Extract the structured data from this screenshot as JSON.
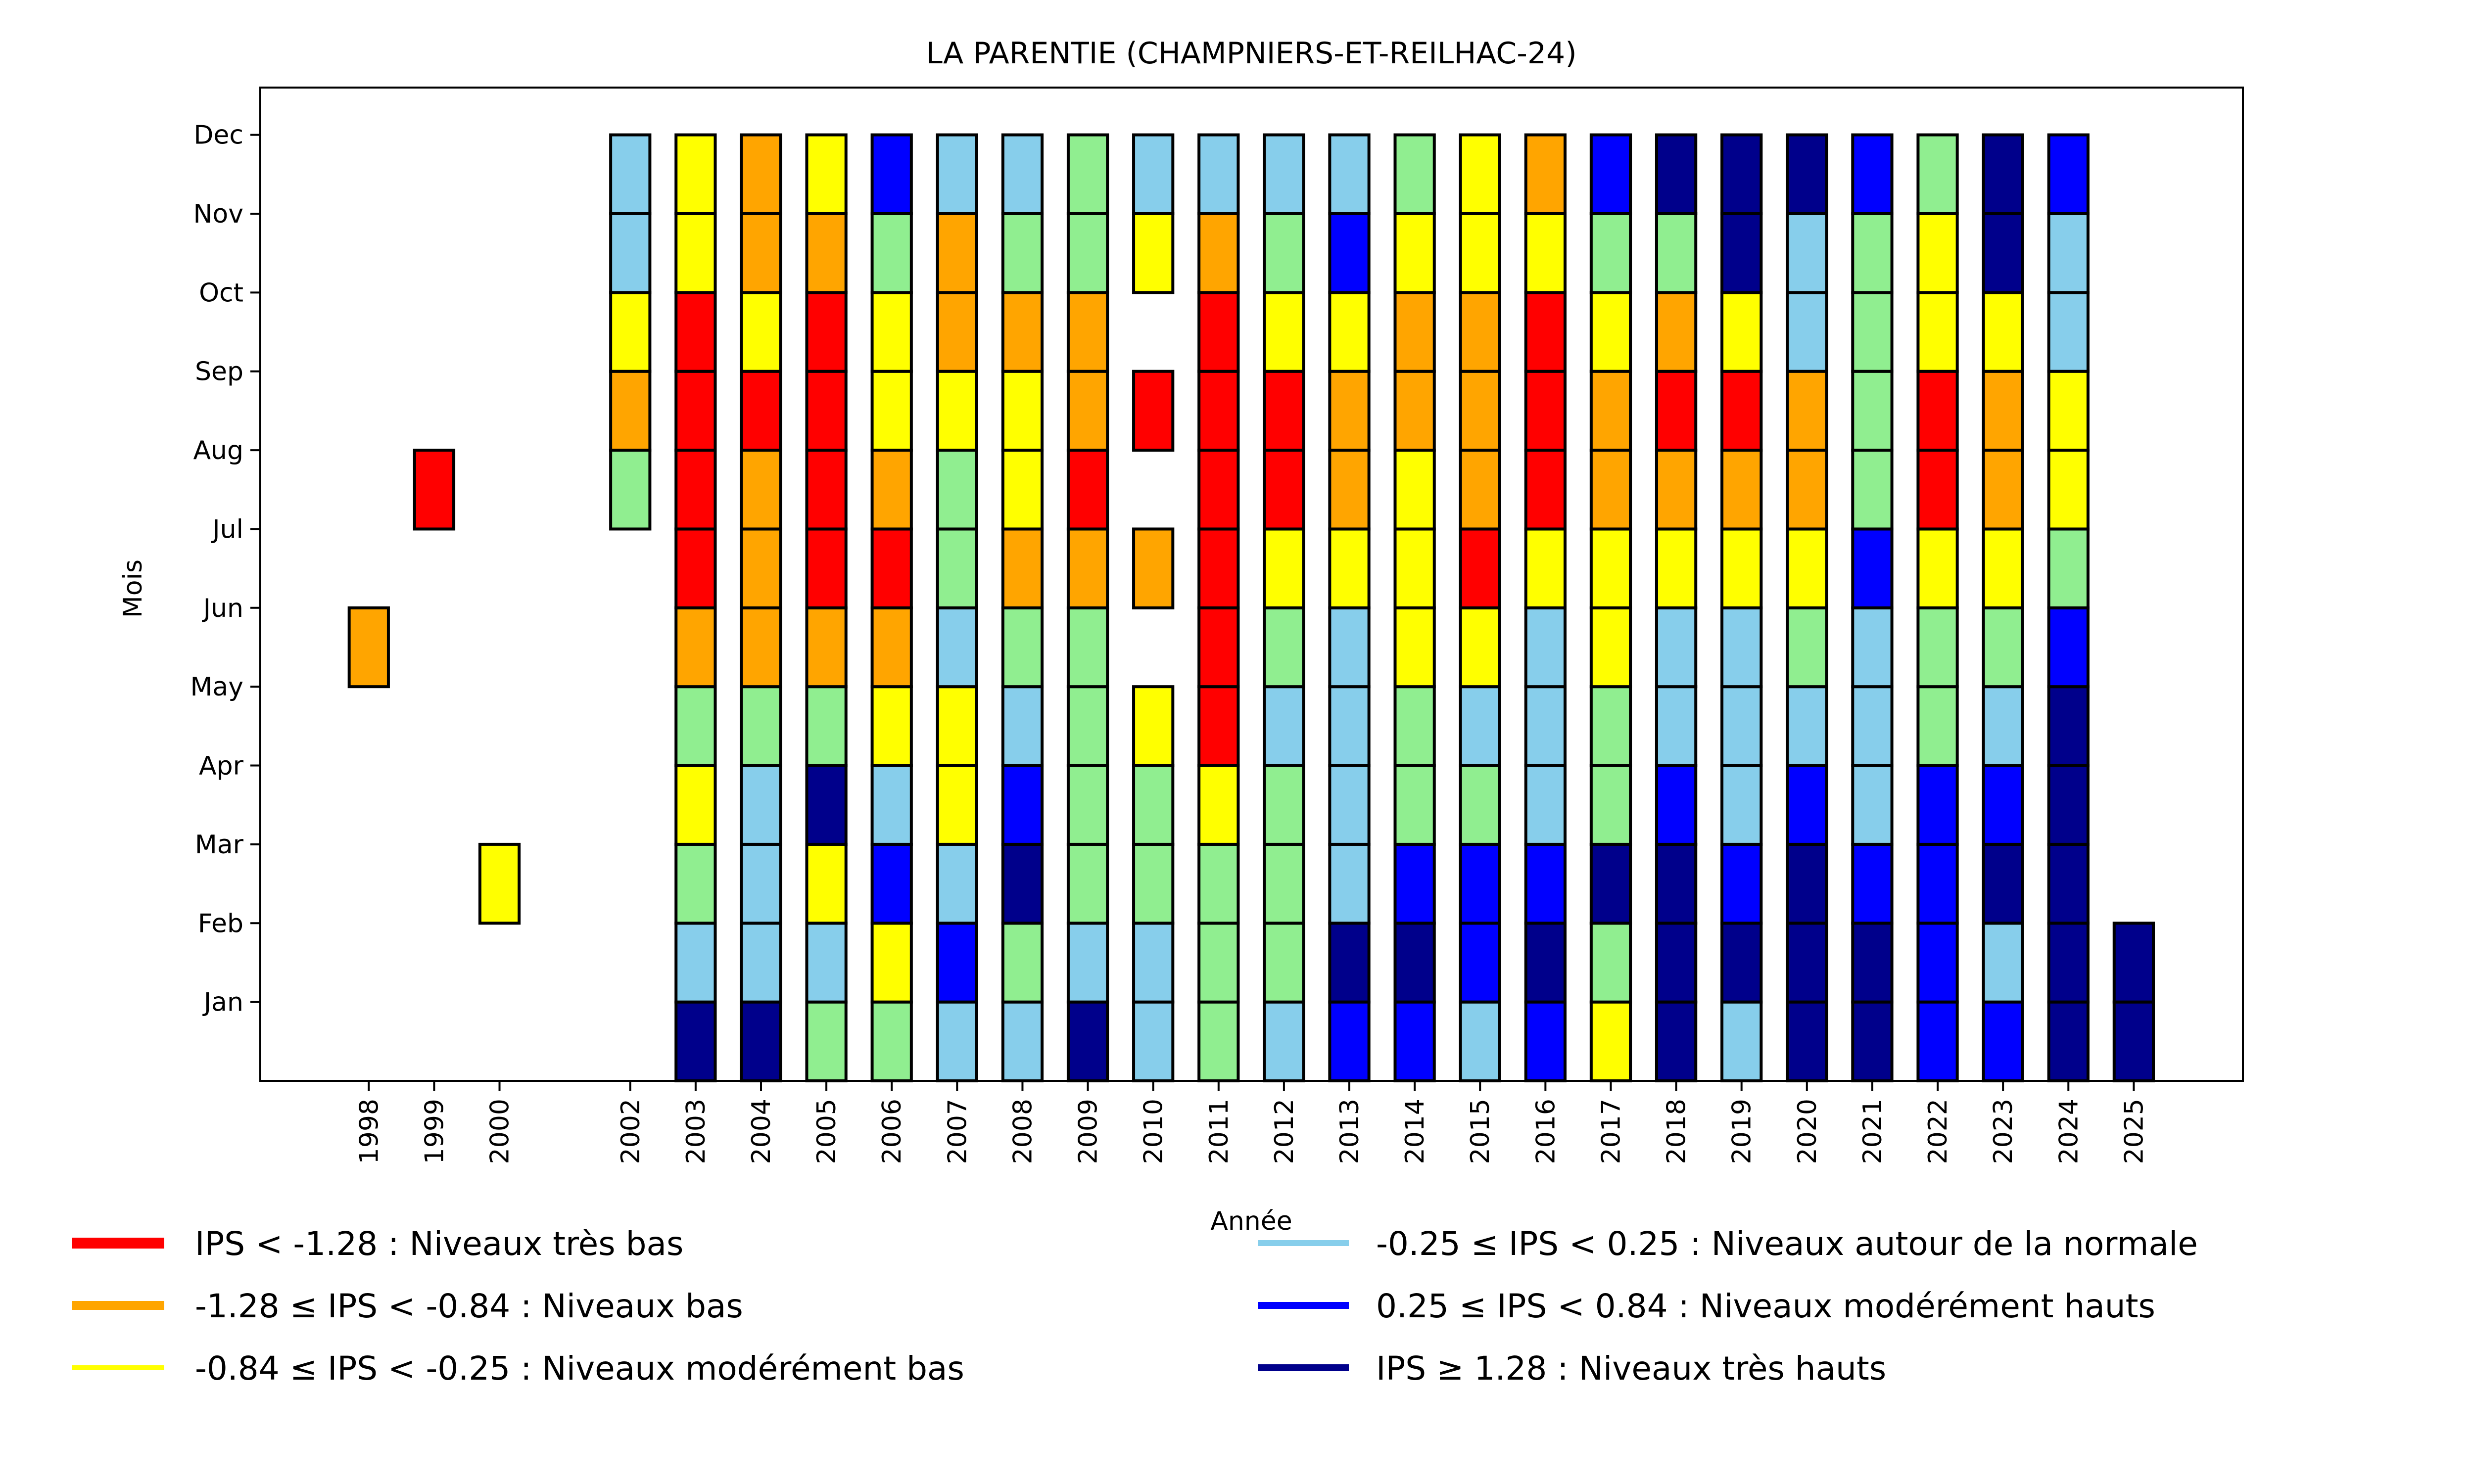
{
  "chart_data": {
    "type": "heatmap",
    "title": "LA PARENTIE (CHAMPNIERS-ET-REILHAC-24)",
    "xlabel": "Année",
    "ylabel": "Mois",
    "x_ticks": [
      "1998",
      "1999",
      "2000",
      "2002",
      "2003",
      "2004",
      "2005",
      "2006",
      "2007",
      "2008",
      "2009",
      "2010",
      "2011",
      "2012",
      "2013",
      "2014",
      "2015",
      "2016",
      "2017",
      "2018",
      "2019",
      "2020",
      "2021",
      "2022",
      "2023",
      "2024",
      "2025"
    ],
    "y_ticks": [
      "Jan",
      "Feb",
      "Mar",
      "Apr",
      "May",
      "Jun",
      "Jul",
      "Aug",
      "Sep",
      "Oct",
      "Nov",
      "Dec"
    ],
    "xlim": [
      1996.34,
      2026.67
    ],
    "ylim": [
      0,
      12.6
    ],
    "grid": false,
    "legend_position": "bottom",
    "colors": {
      "tres_bas": "#ff0000",
      "bas": "#ffa500",
      "mod_bas": "#ffff00",
      "vert": "#90ee90",
      "normale": "#87ceeb",
      "mod_hauts": "#0000ff",
      "tres_hauts": "#00008b"
    },
    "legend": [
      {
        "key": "tres_bas",
        "label": "IPS < -1.28 : Niveaux très bas",
        "column": "left"
      },
      {
        "key": "bas",
        "label": "-1.28 ≤ IPS < -0.84 : Niveaux bas",
        "column": "left"
      },
      {
        "key": "mod_bas",
        "label": "-0.84 ≤ IPS < -0.25 : Niveaux modérément bas",
        "column": "left"
      },
      {
        "key": "normale",
        "label": "-0.25 ≤ IPS < 0.25 : Niveaux autour de la normale",
        "column": "right"
      },
      {
        "key": "mod_hauts",
        "label": "0.25 ≤ IPS < 0.84 : Niveaux modérément hauts",
        "column": "right"
      },
      {
        "key": "tres_hauts",
        "label": "IPS ≥ 1.28 : Niveaux très hauts",
        "column": "right"
      }
    ],
    "month_order": [
      "Jan",
      "Feb",
      "Mar",
      "Apr",
      "May",
      "Jun",
      "Jul",
      "Aug",
      "Sep",
      "Oct",
      "Nov",
      "Dec"
    ],
    "series": [
      {
        "year": 1998,
        "months": {
          "Jun": "bas"
        }
      },
      {
        "year": 1999,
        "months": {
          "Aug": "tres_bas"
        }
      },
      {
        "year": 2000,
        "months": {
          "Mar": "mod_bas"
        }
      },
      {
        "year": 2002,
        "months": {
          "Aug": "vert",
          "Sep": "bas",
          "Oct": "mod_bas",
          "Nov": "normale",
          "Dec": "normale"
        }
      },
      {
        "year": 2003,
        "months": {
          "Jan": "tres_hauts",
          "Feb": "normale",
          "Mar": "vert",
          "Apr": "mod_bas",
          "May": "vert",
          "Jun": "bas",
          "Jul": "tres_bas",
          "Aug": "tres_bas",
          "Sep": "tres_bas",
          "Oct": "tres_bas",
          "Nov": "mod_bas",
          "Dec": "mod_bas"
        }
      },
      {
        "year": 2004,
        "months": {
          "Jan": "tres_hauts",
          "Feb": "normale",
          "Mar": "normale",
          "Apr": "normale",
          "May": "vert",
          "Jun": "bas",
          "Jul": "bas",
          "Aug": "bas",
          "Sep": "tres_bas",
          "Oct": "mod_bas",
          "Nov": "bas",
          "Dec": "bas"
        }
      },
      {
        "year": 2005,
        "months": {
          "Jan": "vert",
          "Feb": "normale",
          "Mar": "mod_bas",
          "Apr": "tres_hauts",
          "May": "vert",
          "Jun": "bas",
          "Jul": "tres_bas",
          "Aug": "tres_bas",
          "Sep": "tres_bas",
          "Oct": "tres_bas",
          "Nov": "bas",
          "Dec": "mod_bas"
        }
      },
      {
        "year": 2006,
        "months": {
          "Jan": "vert",
          "Feb": "mod_bas",
          "Mar": "mod_hauts",
          "Apr": "normale",
          "May": "mod_bas",
          "Jun": "bas",
          "Jul": "tres_bas",
          "Aug": "bas",
          "Sep": "mod_bas",
          "Oct": "mod_bas",
          "Nov": "vert",
          "Dec": "mod_hauts"
        }
      },
      {
        "year": 2007,
        "months": {
          "Jan": "normale",
          "Feb": "mod_hauts",
          "Mar": "normale",
          "Apr": "mod_bas",
          "May": "mod_bas",
          "Jun": "normale",
          "Jul": "vert",
          "Aug": "vert",
          "Sep": "mod_bas",
          "Oct": "bas",
          "Nov": "bas",
          "Dec": "normale"
        }
      },
      {
        "year": 2008,
        "months": {
          "Jan": "normale",
          "Feb": "vert",
          "Mar": "tres_hauts",
          "Apr": "mod_hauts",
          "May": "normale",
          "Jun": "vert",
          "Jul": "bas",
          "Aug": "mod_bas",
          "Sep": "mod_bas",
          "Oct": "bas",
          "Nov": "vert",
          "Dec": "normale"
        }
      },
      {
        "year": 2009,
        "months": {
          "Jan": "tres_hauts",
          "Feb": "normale",
          "Mar": "vert",
          "Apr": "vert",
          "May": "vert",
          "Jun": "vert",
          "Jul": "bas",
          "Aug": "tres_bas",
          "Sep": "bas",
          "Oct": "bas",
          "Nov": "vert",
          "Dec": "vert"
        }
      },
      {
        "year": 2010,
        "months": {
          "Jan": "normale",
          "Feb": "normale",
          "Mar": "vert",
          "Apr": "vert",
          "May": "mod_bas",
          "Jul": "bas",
          "Sep": "tres_bas",
          "Nov": "mod_bas",
          "Dec": "normale"
        }
      },
      {
        "year": 2011,
        "months": {
          "Jan": "vert",
          "Feb": "vert",
          "Mar": "vert",
          "Apr": "mod_bas",
          "May": "tres_bas",
          "Jun": "tres_bas",
          "Jul": "tres_bas",
          "Aug": "tres_bas",
          "Sep": "tres_bas",
          "Oct": "tres_bas",
          "Nov": "bas",
          "Dec": "normale"
        }
      },
      {
        "year": 2012,
        "months": {
          "Jan": "normale",
          "Feb": "vert",
          "Mar": "vert",
          "Apr": "vert",
          "May": "normale",
          "Jun": "vert",
          "Jul": "mod_bas",
          "Aug": "tres_bas",
          "Sep": "tres_bas",
          "Oct": "mod_bas",
          "Nov": "vert",
          "Dec": "normale"
        }
      },
      {
        "year": 2013,
        "months": {
          "Jan": "mod_hauts",
          "Feb": "tres_hauts",
          "Mar": "normale",
          "Apr": "normale",
          "May": "normale",
          "Jun": "normale",
          "Jul": "mod_bas",
          "Aug": "bas",
          "Sep": "bas",
          "Oct": "mod_bas",
          "Nov": "mod_hauts",
          "Dec": "normale"
        }
      },
      {
        "year": 2014,
        "months": {
          "Jan": "mod_hauts",
          "Feb": "tres_hauts",
          "Mar": "mod_hauts",
          "Apr": "vert",
          "May": "vert",
          "Jun": "mod_bas",
          "Jul": "mod_bas",
          "Aug": "mod_bas",
          "Sep": "bas",
          "Oct": "bas",
          "Nov": "mod_bas",
          "Dec": "vert"
        }
      },
      {
        "year": 2015,
        "months": {
          "Jan": "normale",
          "Feb": "mod_hauts",
          "Mar": "mod_hauts",
          "Apr": "vert",
          "May": "normale",
          "Jun": "mod_bas",
          "Jul": "tres_bas",
          "Aug": "bas",
          "Sep": "bas",
          "Oct": "bas",
          "Nov": "mod_bas",
          "Dec": "mod_bas"
        }
      },
      {
        "year": 2016,
        "months": {
          "Jan": "mod_hauts",
          "Feb": "tres_hauts",
          "Mar": "mod_hauts",
          "Apr": "normale",
          "May": "normale",
          "Jun": "normale",
          "Jul": "mod_bas",
          "Aug": "tres_bas",
          "Sep": "tres_bas",
          "Oct": "tres_bas",
          "Nov": "mod_bas",
          "Dec": "bas"
        }
      },
      {
        "year": 2017,
        "months": {
          "Jan": "mod_bas",
          "Feb": "vert",
          "Mar": "tres_hauts",
          "Apr": "vert",
          "May": "vert",
          "Jun": "mod_bas",
          "Jul": "mod_bas",
          "Aug": "bas",
          "Sep": "bas",
          "Oct": "mod_bas",
          "Nov": "vert",
          "Dec": "mod_hauts"
        }
      },
      {
        "year": 2018,
        "months": {
          "Jan": "tres_hauts",
          "Feb": "tres_hauts",
          "Mar": "tres_hauts",
          "Apr": "mod_hauts",
          "May": "normale",
          "Jun": "normale",
          "Jul": "mod_bas",
          "Aug": "bas",
          "Sep": "tres_bas",
          "Oct": "bas",
          "Nov": "vert",
          "Dec": "tres_hauts"
        }
      },
      {
        "year": 2019,
        "months": {
          "Jan": "normale",
          "Feb": "tres_hauts",
          "Mar": "mod_hauts",
          "Apr": "normale",
          "May": "normale",
          "Jun": "normale",
          "Jul": "mod_bas",
          "Aug": "bas",
          "Sep": "tres_bas",
          "Oct": "mod_bas",
          "Nov": "tres_hauts",
          "Dec": "tres_hauts"
        }
      },
      {
        "year": 2020,
        "months": {
          "Jan": "tres_hauts",
          "Feb": "tres_hauts",
          "Mar": "tres_hauts",
          "Apr": "mod_hauts",
          "May": "normale",
          "Jun": "vert",
          "Jul": "mod_bas",
          "Aug": "bas",
          "Sep": "bas",
          "Oct": "normale",
          "Nov": "normale",
          "Dec": "tres_hauts"
        }
      },
      {
        "year": 2021,
        "months": {
          "Jan": "tres_hauts",
          "Feb": "tres_hauts",
          "Mar": "mod_hauts",
          "Apr": "normale",
          "May": "normale",
          "Jun": "normale",
          "Jul": "mod_hauts",
          "Aug": "vert",
          "Sep": "vert",
          "Oct": "vert",
          "Nov": "vert",
          "Dec": "mod_hauts"
        }
      },
      {
        "year": 2022,
        "months": {
          "Jan": "mod_hauts",
          "Feb": "mod_hauts",
          "Mar": "mod_hauts",
          "Apr": "mod_hauts",
          "May": "vert",
          "Jun": "vert",
          "Jul": "mod_bas",
          "Aug": "tres_bas",
          "Sep": "tres_bas",
          "Oct": "mod_bas",
          "Nov": "mod_bas",
          "Dec": "vert"
        }
      },
      {
        "year": 2023,
        "months": {
          "Jan": "mod_hauts",
          "Feb": "normale",
          "Mar": "tres_hauts",
          "Apr": "mod_hauts",
          "May": "normale",
          "Jun": "vert",
          "Jul": "mod_bas",
          "Aug": "bas",
          "Sep": "bas",
          "Oct": "mod_bas",
          "Nov": "tres_hauts",
          "Dec": "tres_hauts"
        }
      },
      {
        "year": 2024,
        "months": {
          "Jan": "tres_hauts",
          "Feb": "tres_hauts",
          "Mar": "tres_hauts",
          "Apr": "tres_hauts",
          "May": "tres_hauts",
          "Jun": "mod_hauts",
          "Jul": "vert",
          "Aug": "mod_bas",
          "Sep": "mod_bas",
          "Oct": "normale",
          "Nov": "normale",
          "Dec": "mod_hauts"
        }
      },
      {
        "year": 2025,
        "months": {
          "Jan": "tres_hauts",
          "Feb": "tres_hauts"
        }
      }
    ]
  }
}
